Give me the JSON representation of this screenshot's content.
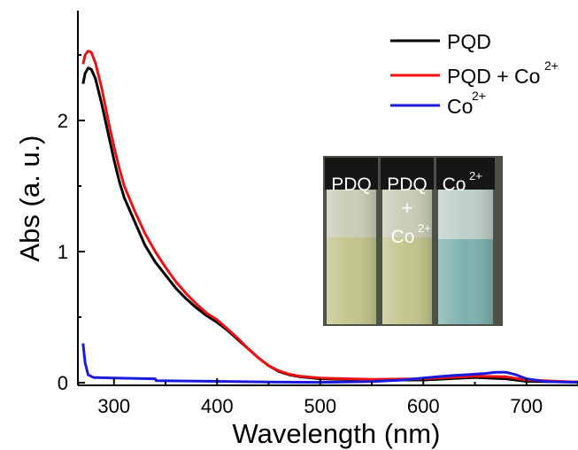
{
  "chart_data": {
    "type": "line",
    "xlabel": "Wavelength (nm)",
    "ylabel": "Abs (a. u.)",
    "xlim": [
      265,
      750
    ],
    "ylim": [
      0,
      2.75
    ],
    "x_ticks": [
      300,
      400,
      500,
      600,
      700
    ],
    "y_ticks": [
      0,
      1,
      2
    ],
    "x_tick_labels": [
      "300",
      "400",
      "500",
      "600",
      "700"
    ],
    "y_tick_labels": [
      "0",
      "1",
      "2"
    ],
    "grid": false,
    "legend": {
      "position": "top-right",
      "entries": [
        {
          "text": "PQD",
          "superscript": ""
        },
        {
          "text": "PQD + Co",
          "superscript": "2+"
        },
        {
          "text": "Co",
          "superscript": "2+"
        }
      ]
    },
    "series": [
      {
        "name": "PQD",
        "color": "#000000",
        "points": [
          [
            270,
            2.28
          ],
          [
            272,
            2.36
          ],
          [
            275,
            2.4
          ],
          [
            278,
            2.39
          ],
          [
            282,
            2.32
          ],
          [
            288,
            2.13
          ],
          [
            295,
            1.88
          ],
          [
            300,
            1.7
          ],
          [
            305,
            1.54
          ],
          [
            310,
            1.41
          ],
          [
            320,
            1.23
          ],
          [
            330,
            1.05
          ],
          [
            340,
            0.92
          ],
          [
            350,
            0.82
          ],
          [
            360,
            0.72
          ],
          [
            370,
            0.64
          ],
          [
            380,
            0.57
          ],
          [
            390,
            0.51
          ],
          [
            400,
            0.46
          ],
          [
            410,
            0.4
          ],
          [
            420,
            0.33
          ],
          [
            430,
            0.26
          ],
          [
            440,
            0.19
          ],
          [
            450,
            0.13
          ],
          [
            460,
            0.085
          ],
          [
            470,
            0.06
          ],
          [
            480,
            0.045
          ],
          [
            500,
            0.03
          ],
          [
            550,
            0.02
          ],
          [
            600,
            0.02
          ],
          [
            650,
            0.04
          ],
          [
            680,
            0.03
          ],
          [
            700,
            0.01
          ],
          [
            750,
            0.005
          ]
        ]
      },
      {
        "name": "PQD + Co",
        "name_superscript": "2+",
        "color": "#ee1111",
        "points": [
          [
            270,
            2.43
          ],
          [
            272,
            2.5
          ],
          [
            275,
            2.53
          ],
          [
            278,
            2.52
          ],
          [
            282,
            2.44
          ],
          [
            288,
            2.25
          ],
          [
            295,
            1.98
          ],
          [
            300,
            1.8
          ],
          [
            305,
            1.64
          ],
          [
            310,
            1.5
          ],
          [
            320,
            1.31
          ],
          [
            330,
            1.14
          ],
          [
            340,
            1.0
          ],
          [
            350,
            0.88
          ],
          [
            360,
            0.77
          ],
          [
            370,
            0.68
          ],
          [
            380,
            0.6
          ],
          [
            390,
            0.53
          ],
          [
            400,
            0.48
          ],
          [
            410,
            0.41
          ],
          [
            420,
            0.34
          ],
          [
            430,
            0.26
          ],
          [
            440,
            0.19
          ],
          [
            450,
            0.13
          ],
          [
            460,
            0.09
          ],
          [
            470,
            0.065
          ],
          [
            480,
            0.05
          ],
          [
            500,
            0.035
          ],
          [
            550,
            0.025
          ],
          [
            600,
            0.03
          ],
          [
            650,
            0.05
          ],
          [
            680,
            0.045
          ],
          [
            700,
            0.02
          ],
          [
            750,
            0.005
          ]
        ]
      },
      {
        "name": "Co",
        "name_superscript": "2+",
        "color": "#1a1adc",
        "points": [
          [
            270,
            0.3
          ],
          [
            272,
            0.15
          ],
          [
            275,
            0.06
          ],
          [
            280,
            0.04
          ],
          [
            300,
            0.035
          ],
          [
            340,
            0.03
          ],
          [
            341,
            0.015
          ],
          [
            400,
            0.01
          ],
          [
            450,
            0.005
          ],
          [
            500,
            0.003
          ],
          [
            550,
            0.008
          ],
          [
            580,
            0.02
          ],
          [
            600,
            0.035
          ],
          [
            620,
            0.05
          ],
          [
            640,
            0.06
          ],
          [
            660,
            0.07
          ],
          [
            670,
            0.08
          ],
          [
            680,
            0.08
          ],
          [
            690,
            0.06
          ],
          [
            700,
            0.03
          ],
          [
            720,
            0.008
          ],
          [
            750,
            0.003
          ]
        ]
      }
    ]
  },
  "inset_photo": {
    "vials": [
      {
        "label": "PDQ",
        "label2": "",
        "superscript": ""
      },
      {
        "label": "PDQ",
        "label2": "+",
        "label3": "Co",
        "superscript": "2+"
      },
      {
        "label": "Co",
        "label2": "",
        "superscript": "2+"
      }
    ],
    "colors": {
      "background": "#4c5248",
      "cap": "#161616",
      "glass": "#c9cdb6",
      "liquid_yellow": "#c3c58c",
      "liquid_teal": "#7db1ad"
    }
  }
}
